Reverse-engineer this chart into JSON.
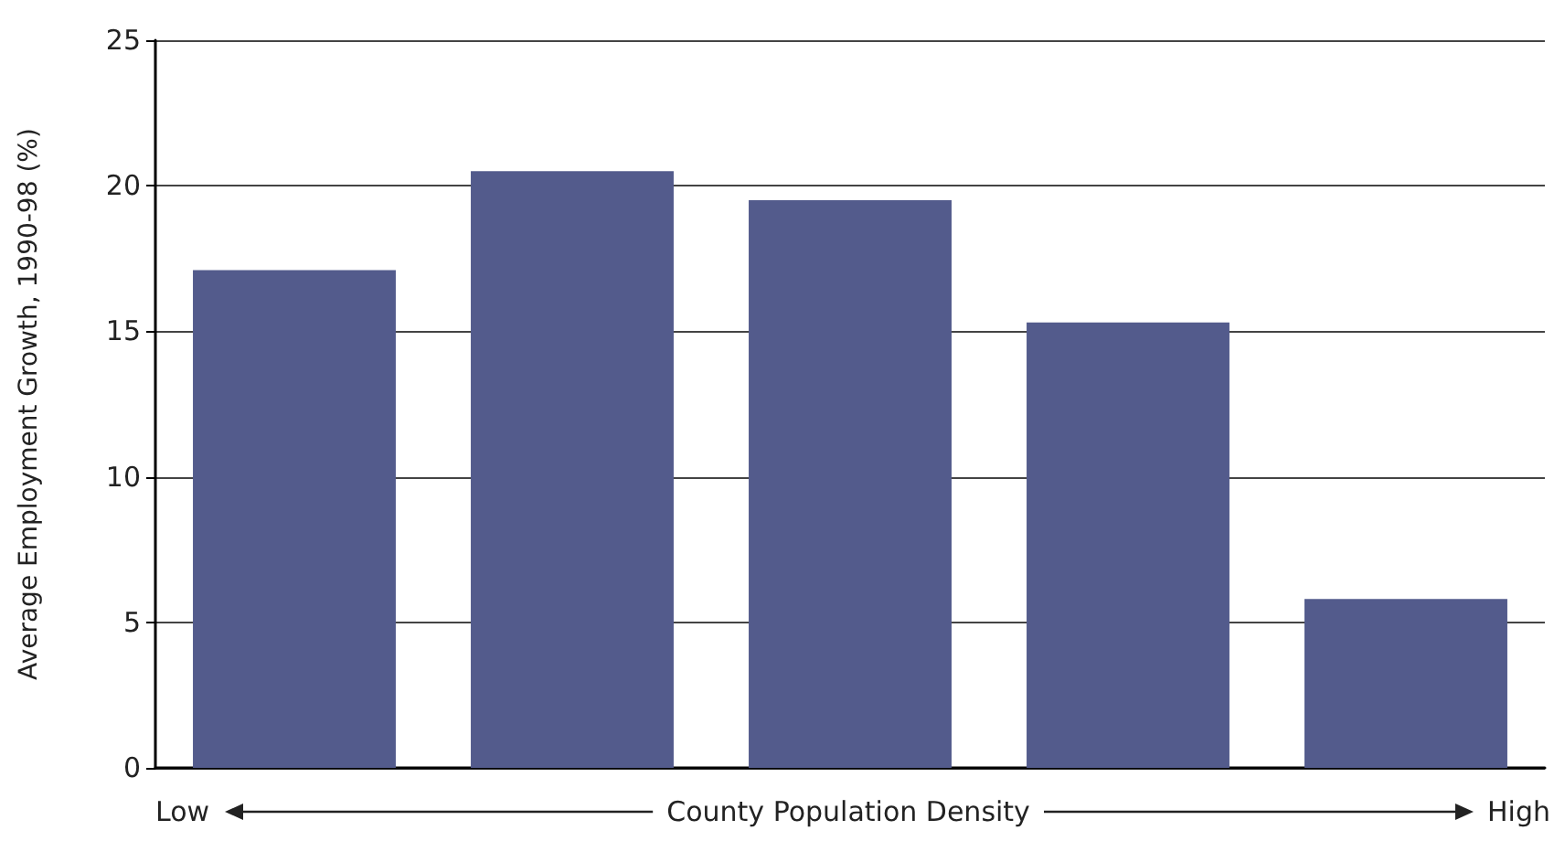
{
  "chart_data": {
    "type": "bar",
    "ylabel": "Average Employment Growth, 1990-98 (%)",
    "xlabel": "County Population Density",
    "annotations": [
      "Low",
      "High"
    ],
    "categories": [
      null,
      null,
      null,
      null,
      null
    ],
    "values": [
      17.1,
      20.5,
      19.5,
      15.3,
      5.8
    ],
    "color": "#535b8c",
    "ylim": [
      0,
      25
    ],
    "yticks": [
      0,
      5,
      10,
      15,
      20,
      25
    ],
    "grid": "y"
  }
}
